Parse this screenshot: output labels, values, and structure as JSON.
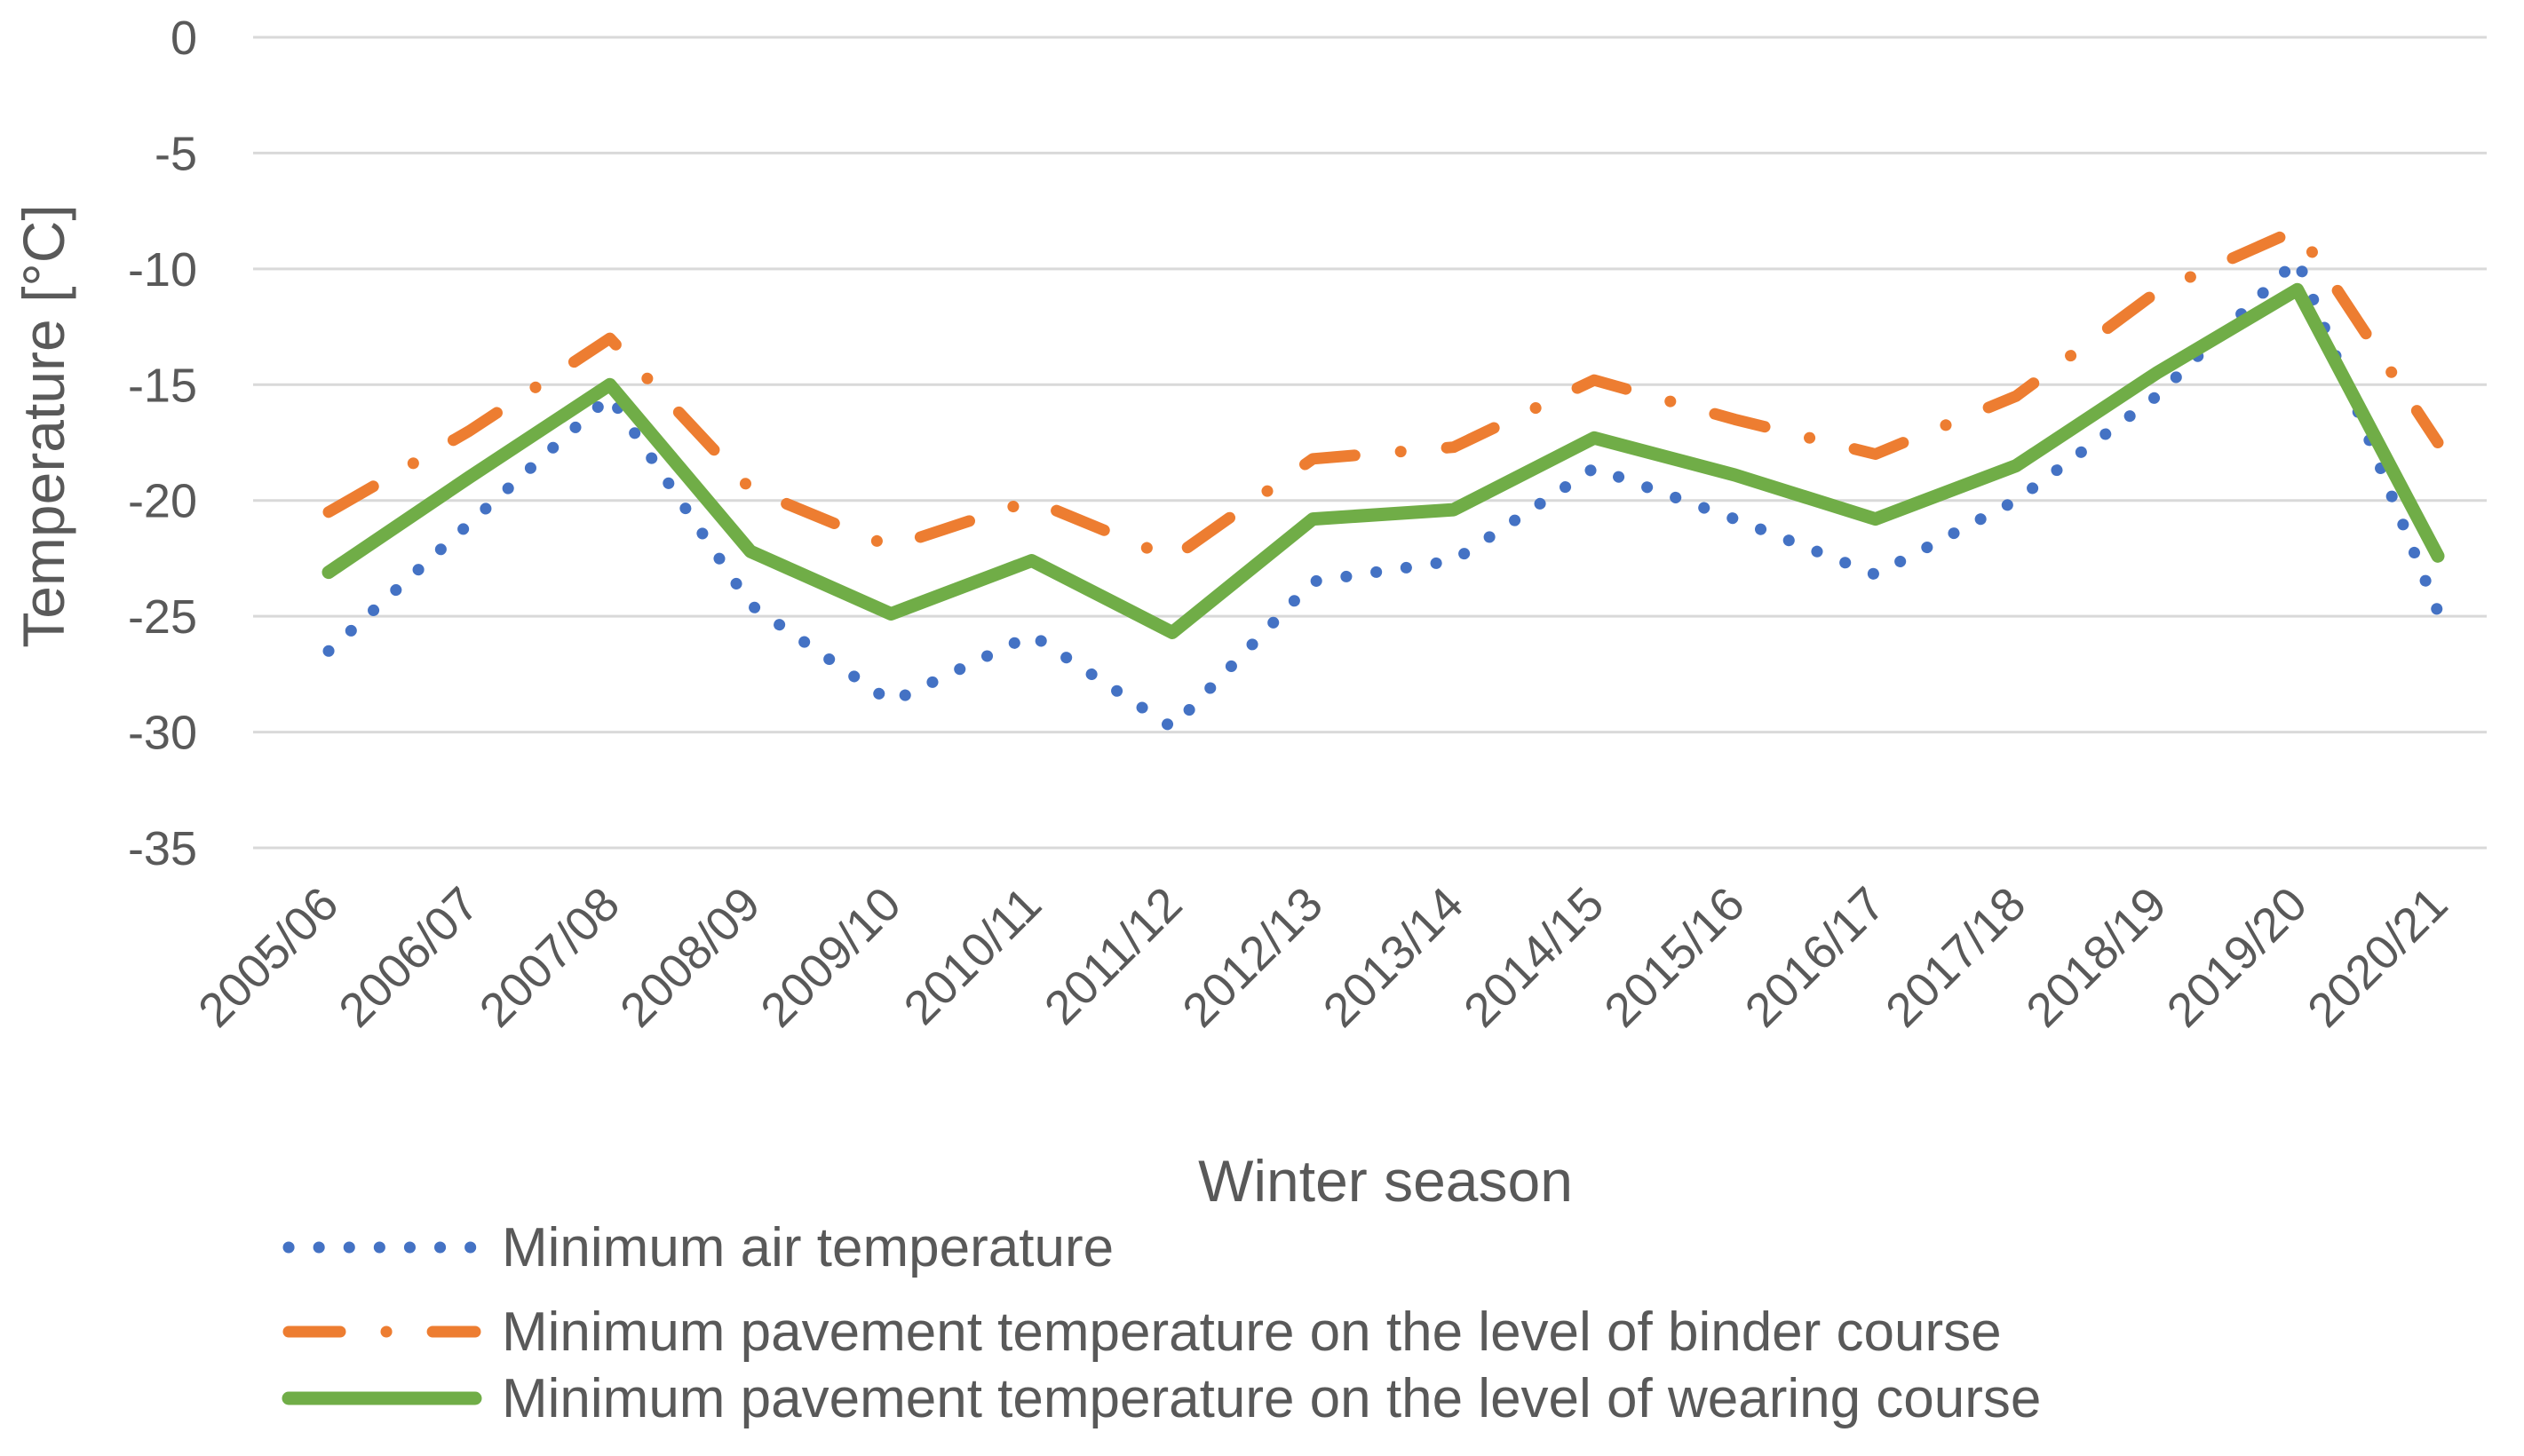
{
  "chart_data": {
    "type": "line",
    "title": "",
    "xlabel": "Winter season",
    "ylabel": "Temperature [°C]",
    "ylim": [
      -35,
      0
    ],
    "yticks": [
      0,
      -5,
      -10,
      -15,
      -20,
      -25,
      -30,
      -35
    ],
    "grid": true,
    "legend_position": "bottom",
    "categories": [
      "2005/06",
      "2006/07",
      "2007/08",
      "2008/09",
      "2009/10",
      "2010/11",
      "2011/12",
      "2012/13",
      "2013/14",
      "2014/15",
      "2015/16",
      "2016/17",
      "2017/18",
      "2018/19",
      "2019/20",
      "2020/21"
    ],
    "series": [
      {
        "name": "Minimum air temperature",
        "style": "dotted",
        "color": "#4472C4",
        "values": [
          -26.5,
          -21.0,
          -15.5,
          -24.5,
          -28.7,
          -25.8,
          -29.8,
          -23.5,
          -22.6,
          -18.6,
          -20.8,
          -23.2,
          -20.0,
          -15.5,
          -9.6,
          -24.8
        ]
      },
      {
        "name": "Minimum pavement temperature on the level of binder course",
        "style": "dash-dot",
        "color": "#ED7D31",
        "values": [
          -20.5,
          -17.0,
          -13.0,
          -19.5,
          -22.0,
          -20.0,
          -22.5,
          -18.2,
          -17.7,
          -14.8,
          -16.5,
          -18.0,
          -15.5,
          -11.0,
          -8.3,
          -17.5
        ]
      },
      {
        "name": "Minimum pavement temperature on the level of wearing course",
        "style": "solid",
        "color": "#70AD47",
        "values": [
          -23.1,
          -19.0,
          -15.0,
          -22.2,
          -24.9,
          -22.6,
          -25.7,
          -20.8,
          -20.4,
          -17.3,
          -18.9,
          -20.8,
          -18.5,
          -14.5,
          -10.9,
          -22.4
        ]
      }
    ]
  }
}
